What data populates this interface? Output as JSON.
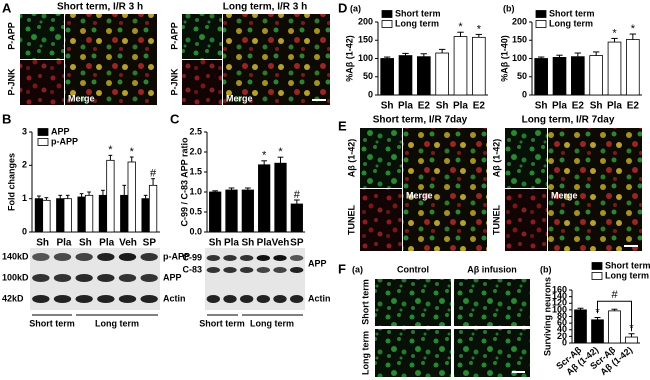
{
  "chart_data": [
    {
      "type": "bar",
      "y_label": "Fold changes",
      "categories": [
        "Sh",
        "Pla",
        "Sh",
        "Pla",
        "Veh",
        "SP"
      ],
      "series": [
        {
          "name": "APP",
          "color": "#000000",
          "values": [
            1.0,
            1.0,
            1.05,
            1.1,
            1.1,
            1.0
          ],
          "errors": [
            0.08,
            0.1,
            0.1,
            0.15,
            0.3,
            0.1
          ],
          "significance": [
            null,
            null,
            null,
            null,
            null,
            null
          ]
        },
        {
          "name": "p-APP",
          "color": "#ffffff",
          "values": [
            0.95,
            1.0,
            1.1,
            2.15,
            2.1,
            1.4
          ],
          "errors": [
            0.08,
            0.1,
            0.1,
            0.15,
            0.15,
            0.2
          ],
          "significance": [
            null,
            null,
            null,
            "*",
            "*",
            "#"
          ]
        }
      ],
      "ylim": [
        0,
        3
      ],
      "yticks": [
        0,
        1,
        2,
        3
      ]
    },
    {
      "type": "bar",
      "y_label": "C-99 / C-83 APP ratio",
      "categories": [
        "Sh",
        "Pla",
        "Sh",
        "Pla",
        "Veh",
        "SP"
      ],
      "series": [
        {
          "color": "#000000",
          "values": [
            1.0,
            1.05,
            1.05,
            1.68,
            1.72,
            0.7
          ],
          "errors": [
            0.03,
            0.05,
            0.05,
            0.1,
            0.15,
            0.1
          ],
          "significance": [
            null,
            null,
            null,
            "*",
            "*",
            "#"
          ]
        }
      ],
      "ylim": [
        0,
        2.5
      ],
      "yticks": [
        {
          "value": 0,
          "label": "0.0"
        },
        {
          "value": 0.5,
          "label": "0.5"
        },
        {
          "value": 1,
          "label": "1.0"
        },
        {
          "value": 1.5,
          "label": "1.5"
        },
        {
          "value": 2,
          "label": "2.0"
        },
        {
          "value": 2.5,
          "label": "2.5"
        }
      ]
    },
    {
      "type": "bar",
      "panel": "(a)",
      "y_label": "%Aβ (1-42)",
      "categories": [
        "Sh",
        "Pla",
        "E2",
        "Sh",
        "Pla",
        "E2"
      ],
      "series": [
        {
          "name": "Short term",
          "color": "#000000",
          "values": [
            100,
            108,
            105,
            null,
            null,
            null
          ],
          "errors": [
            4,
            6,
            8,
            null,
            null,
            null
          ],
          "significance": [
            null,
            null,
            null,
            null,
            null,
            null
          ]
        },
        {
          "name": "Long term",
          "color": "#ffffff",
          "values": [
            null,
            null,
            null,
            115,
            160,
            158
          ],
          "errors": [
            null,
            null,
            null,
            10,
            12,
            8
          ],
          "significance": [
            null,
            null,
            null,
            null,
            "*",
            "*"
          ]
        }
      ],
      "ylim": [
        0,
        200
      ],
      "yticks": [
        0,
        50,
        100,
        150,
        200
      ]
    },
    {
      "type": "bar",
      "panel": "(b)",
      "y_label": "%Aβ (1-40)",
      "categories": [
        "Sh",
        "Pla",
        "E2",
        "Sh",
        "Pla",
        "E2"
      ],
      "series": [
        {
          "name": "Short term",
          "color": "#000000",
          "values": [
            100,
            103,
            105,
            null,
            null,
            null
          ],
          "errors": [
            4,
            6,
            10,
            null,
            null,
            null
          ],
          "significance": [
            null,
            null,
            null,
            null,
            null,
            null
          ]
        },
        {
          "name": "Long term",
          "color": "#ffffff",
          "values": [
            null,
            null,
            null,
            108,
            145,
            152
          ],
          "errors": [
            null,
            null,
            null,
            10,
            10,
            15
          ],
          "significance": [
            null,
            null,
            null,
            null,
            "*",
            "*"
          ]
        }
      ],
      "ylim": [
        0,
        200
      ],
      "yticks": [
        0,
        50,
        100,
        150,
        200
      ]
    },
    {
      "type": "bar",
      "panel": "(b)",
      "y_label": "Surviving neurons",
      "categories": [
        "Scr-Aβ",
        "Aβ (1-42)",
        "Scr-Aβ",
        "Aβ (1-42)"
      ],
      "series": [
        {
          "name": "Short term",
          "color": "#000000",
          "values": [
            100,
            70,
            null,
            null
          ],
          "errors": [
            5,
            7,
            null,
            null
          ],
          "significance": [
            null,
            "*",
            null,
            null
          ]
        },
        {
          "name": "Long term",
          "color": "#ffffff",
          "values": [
            null,
            null,
            97,
            18
          ],
          "errors": [
            null,
            null,
            5,
            10
          ],
          "significance": [
            null,
            null,
            null,
            "*"
          ]
        }
      ],
      "bracket_label": "#",
      "ylim": [
        0,
        160
      ],
      "yticks": [
        0,
        20,
        40,
        60,
        80,
        100,
        120,
        140,
        160
      ]
    }
  ],
  "figure": {
    "panel_letters": [
      "A",
      "B",
      "C",
      "D",
      "E",
      "F"
    ],
    "panel_a": {
      "titles": [
        "Short term, I/R 3 h",
        "Long term, I/R 3 h"
      ],
      "rows": [
        "P-APP",
        "P-JNK"
      ],
      "merge": "Merge"
    },
    "panel_b_blot": {
      "sizes": [
        "140kD",
        "100kD",
        "42kD"
      ],
      "bands": [
        "p-APP",
        "APP",
        "Actin"
      ],
      "groups": [
        "Short term",
        "Long term"
      ]
    },
    "panel_c_blot": {
      "bands": [
        "C-99",
        "C-83",
        "APP",
        "Actin"
      ],
      "groups": [
        "Short term",
        "Long term"
      ]
    },
    "panel_e": {
      "titles": [
        "Short term, I/R 7day",
        "Long term, I/R 7day"
      ],
      "rows": [
        "Aβ (1-42)",
        "TUNEL"
      ],
      "merge": "Merge"
    },
    "panel_f": {
      "sublabel": "(a)",
      "columns": [
        "Control",
        "Aβ infusion"
      ],
      "rows": [
        "Short term",
        "Long term"
      ]
    }
  }
}
